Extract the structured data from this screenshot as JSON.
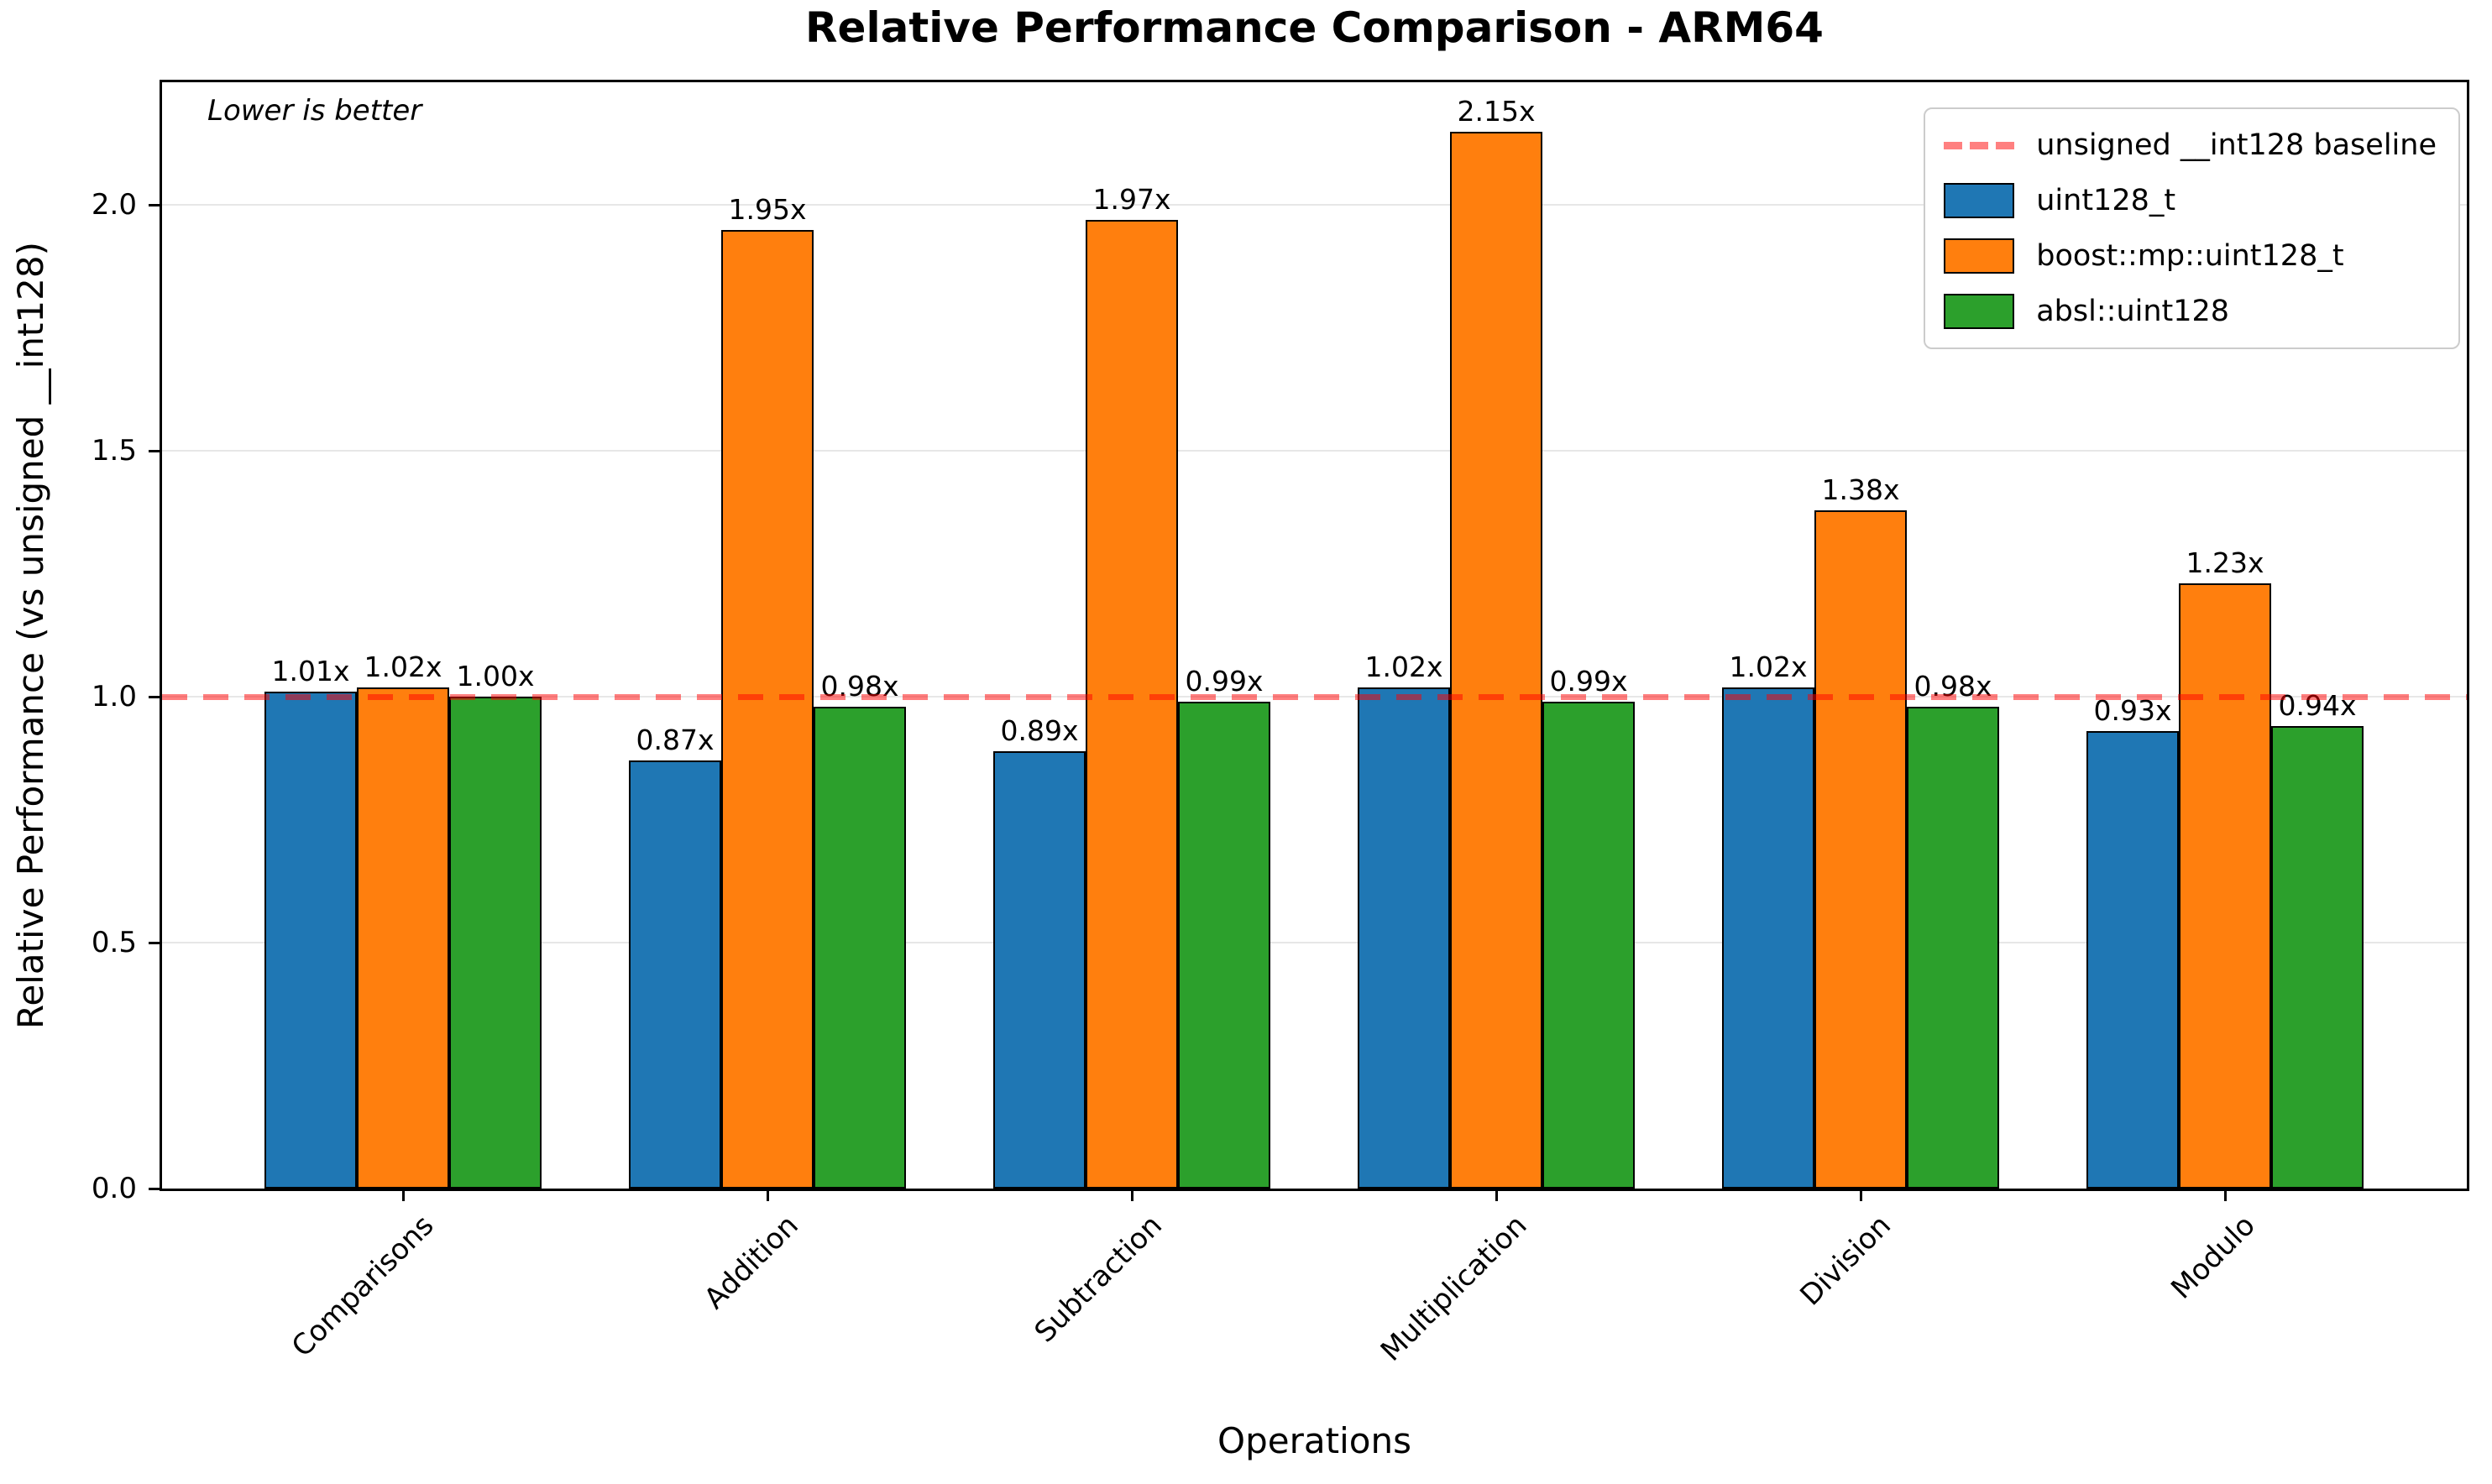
{
  "chart_data": {
    "type": "bar",
    "title": "Relative Performance Comparison - ARM64",
    "xlabel": "Operations",
    "ylabel": "Relative Performance (vs unsigned __int128)",
    "annotation": "Lower is better",
    "categories": [
      "Comparisons",
      "Addition",
      "Subtraction",
      "Multiplication",
      "Division",
      "Modulo"
    ],
    "series": [
      {
        "name": "uint128_t",
        "color": "#1f77b4",
        "values": [
          1.01,
          0.87,
          0.89,
          1.02,
          1.02,
          0.93
        ],
        "bar_labels": [
          "1.01x",
          "0.87x",
          "0.89x",
          "1.02x",
          "1.02x",
          "0.93x"
        ]
      },
      {
        "name": "boost::mp::uint128_t",
        "color": "#ff7f0e",
        "values": [
          1.02,
          1.95,
          1.97,
          2.15,
          1.38,
          1.23
        ],
        "bar_labels": [
          "1.02x",
          "1.95x",
          "1.97x",
          "2.15x",
          "1.38x",
          "1.23x"
        ]
      },
      {
        "name": "absl::uint128",
        "color": "#2ca02c",
        "values": [
          1.0,
          0.98,
          0.99,
          0.99,
          0.98,
          0.94
        ],
        "bar_labels": [
          "1.00x",
          "0.98x",
          "0.99x",
          "0.99x",
          "0.98x",
          "0.94x"
        ]
      }
    ],
    "baseline": {
      "value": 1.0,
      "label": "unsigned __int128 baseline",
      "color": "#ff8080"
    },
    "ylim": [
      0,
      2.25
    ],
    "yticks": [
      0.0,
      0.5,
      1.0,
      1.5,
      2.0
    ],
    "grid": true,
    "legend_position": "upper right",
    "bar_edge_color": "#000000"
  }
}
